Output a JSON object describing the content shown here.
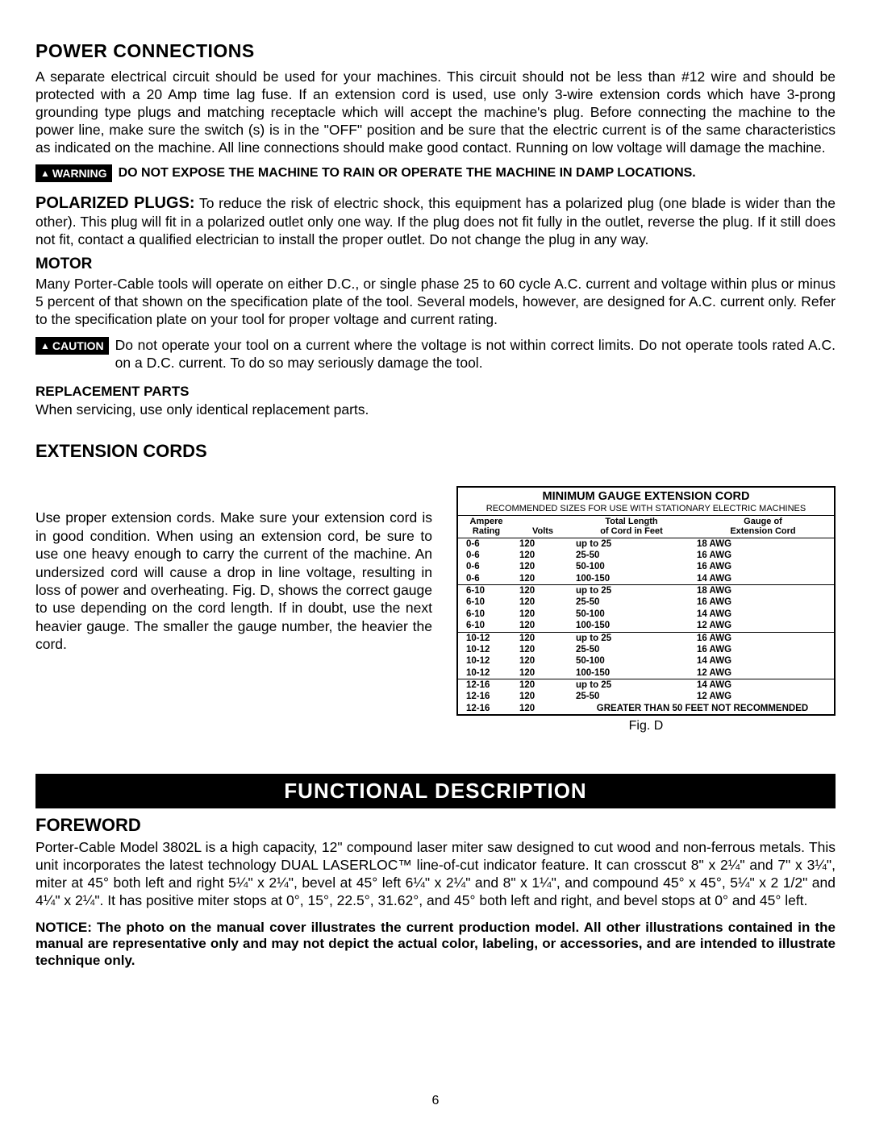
{
  "page_number": "6",
  "sections": {
    "power_connections": {
      "heading": "POWER CONNECTIONS",
      "body": "A separate electrical circuit should be used for your machines. This circuit should not be less than #12 wire and should be protected with a 20 Amp time lag fuse. If an extension cord is used, use only 3-wire extension cords which have 3-prong grounding type plugs and matching receptacle which will accept the machine's plug. Before connecting the machine to the power line, make sure the switch (s) is in the \"OFF\" position and be sure that the electric current is of the same characteristics as indicated on the machine. All line connections should make good contact. Running on low voltage will damage the machine.",
      "warning_label": "WARNING",
      "warning_text": "DO NOT EXPOSE THE MACHINE TO RAIN OR OPERATE THE MACHINE IN DAMP LOCATIONS."
    },
    "polarized": {
      "lead": "POLARIZED PLUGS:",
      "body": "To reduce the risk of electric shock, this equipment has a polarized plug (one blade is wider than the other). This plug will fit in a polarized outlet only one way. If the plug does not fit fully in the outlet, reverse the plug. If it still does not fit, contact a qualified electrician to install the proper outlet. Do not change the plug in any way."
    },
    "motor": {
      "heading": "MOTOR",
      "body": "Many Porter-Cable tools will operate on either D.C., or single phase 25 to 60 cycle A.C. current and voltage within plus or minus 5 percent of that shown on the specification plate of the tool. Several models, however, are designed for A.C. current only. Refer to the specification plate on your tool for proper voltage and current rating.",
      "caution_label": "CAUTION",
      "caution_text": "Do not operate your tool on a current where the voltage is not within correct limits. Do not operate tools rated A.C. on a D.C. current. To do so may seriously damage the tool."
    },
    "replacement": {
      "heading": "REPLACEMENT PARTS",
      "body": "When servicing, use only identical replacement parts."
    },
    "extension_cords": {
      "heading": "EXTENSION CORDS",
      "body": "Use proper extension cords. Make sure your extension cord is in good condition. When using an extension cord, be sure to use one heavy enough to carry the current of the machine. An undersized cord will cause a drop in line voltage, resulting in loss of power and overheating. Fig. D, shows the correct gauge to use depending on the cord length. If in doubt, use the next heavier gauge. The smaller the gauge number, the heavier the cord.",
      "table": {
        "title": "MINIMUM GAUGE EXTENSION CORD",
        "subtitle": "RECOMMENDED SIZES FOR USE WITH STATIONARY ELECTRIC MACHINES",
        "col1_l1": "Ampere",
        "col1_l2": "Rating",
        "col2": "Volts",
        "col3_l1": "Total Length",
        "col3_l2": "of Cord in Feet",
        "col4_l1": "Gauge of",
        "col4_l2": "Extension Cord",
        "groups": [
          {
            "rows": [
              [
                "0-6",
                "120",
                "up to 25",
                "18 AWG"
              ],
              [
                "0-6",
                "120",
                "25-50",
                "16 AWG"
              ],
              [
                "0-6",
                "120",
                "50-100",
                "16 AWG"
              ],
              [
                "0-6",
                "120",
                "100-150",
                "14 AWG"
              ]
            ]
          },
          {
            "rows": [
              [
                "6-10",
                "120",
                "up to 25",
                "18 AWG"
              ],
              [
                "6-10",
                "120",
                "25-50",
                "16 AWG"
              ],
              [
                "6-10",
                "120",
                "50-100",
                "14 AWG"
              ],
              [
                "6-10",
                "120",
                "100-150",
                "12 AWG"
              ]
            ]
          },
          {
            "rows": [
              [
                "10-12",
                "120",
                "up to 25",
                "16 AWG"
              ],
              [
                "10-12",
                "120",
                "25-50",
                "16 AWG"
              ],
              [
                "10-12",
                "120",
                "50-100",
                "14 AWG"
              ],
              [
                "10-12",
                "120",
                "100-150",
                "12 AWG"
              ]
            ]
          },
          {
            "rows": [
              [
                "12-16",
                "120",
                "up to 25",
                "14 AWG"
              ],
              [
                "12-16",
                "120",
                "25-50",
                "12 AWG"
              ]
            ],
            "footer": [
              "12-16",
              "120",
              "GREATER THAN 50 FEET NOT RECOMMENDED"
            ]
          }
        ],
        "caption": "Fig. D"
      }
    },
    "functional": {
      "banner": "FUNCTIONAL DESCRIPTION",
      "foreword_heading": "FOREWORD",
      "foreword_body": "Porter-Cable Model 3802L is a high capacity, 12\" compound laser miter saw designed to cut wood and non-ferrous metals. This unit incorporates the latest technology DUAL LASERLOC™ line-of-cut indicator feature. It can crosscut 8\" x 2¼\" and 7\" x 3¼\", miter at 45° both left and right 5¼\" x 2¼\", bevel at 45° left 6¼\" x 2¼\" and 8\" x 1¼\", and compound 45° x 45°, 5¼\" x 2 1/2\" and 4¼\" x 2¼\". It has positive miter stops at 0°, 15°, 22.5°, 31.62°, and 45° both left and right, and bevel stops at 0° and 45° left.",
      "notice": "NOTICE: The photo on the manual cover illustrates the current production model. All other illustrations contained in the manual are representative only and may not depict the actual color, labeling, or accessories, and are intended to illustrate technique only."
    }
  }
}
